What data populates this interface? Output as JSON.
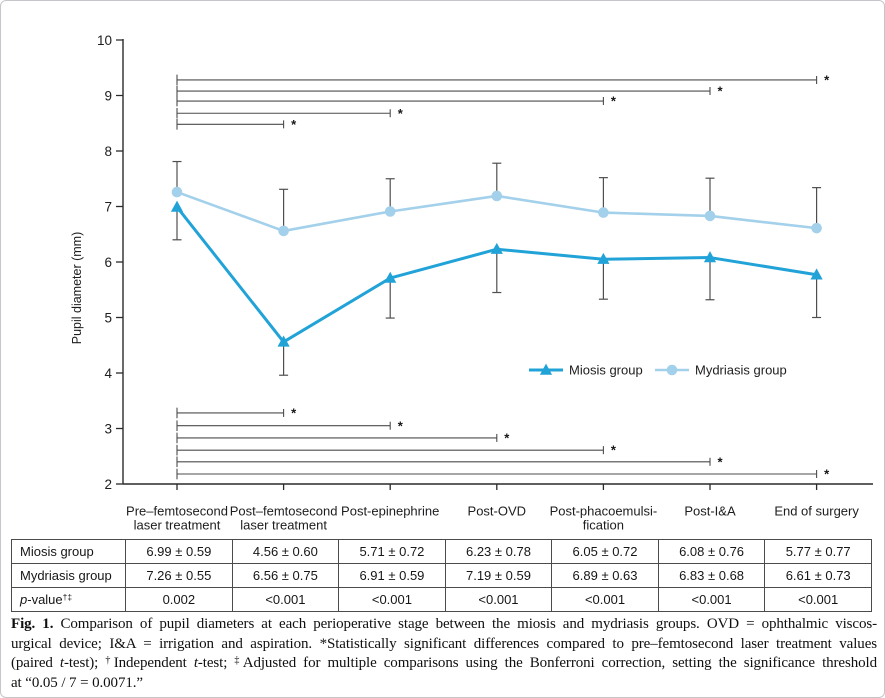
{
  "chart_data": {
    "type": "line",
    "title": "",
    "xlabel": "",
    "ylabel": "Pupil diameter (mm)",
    "ylim": [
      2,
      10
    ],
    "yticks": [
      2,
      3,
      4,
      5,
      6,
      7,
      8,
      9,
      10
    ],
    "grid": "off",
    "categories": [
      [
        "Pre–femtosecond",
        "laser treatment"
      ],
      [
        "Post–femtosecond",
        "laser treatment"
      ],
      [
        "Post-epinephrine"
      ],
      [
        "Post-OVD"
      ],
      [
        "Post-phacoemulsi-",
        "fication"
      ],
      [
        "Post-I&A"
      ],
      [
        "End of surgery"
      ]
    ],
    "series": [
      {
        "name": "Miosis group",
        "marker": "triangle",
        "color": "#21a3d8",
        "values": [
          6.99,
          4.56,
          5.71,
          6.23,
          6.05,
          6.08,
          5.77
        ],
        "sd": [
          0.59,
          0.6,
          0.72,
          0.78,
          0.72,
          0.76,
          0.77
        ],
        "error_direction": "down"
      },
      {
        "name": "Mydriasis group",
        "marker": "circle",
        "color": "#a3d0ea",
        "values": [
          7.26,
          6.56,
          6.91,
          7.19,
          6.89,
          6.83,
          6.61
        ],
        "sd": [
          0.55,
          0.75,
          0.59,
          0.59,
          0.63,
          0.68,
          0.73
        ],
        "error_direction": "up"
      }
    ],
    "legend": {
      "position": "center-right",
      "entries": [
        "Miosis group",
        "Mydriasis group"
      ]
    },
    "significance_marker": "*",
    "significance_top": [
      {
        "from_index": 0,
        "to_index": 6,
        "level": 9.28
      },
      {
        "from_index": 0,
        "to_index": 5,
        "level": 9.08
      },
      {
        "from_index": 0,
        "to_index": 4,
        "level": 8.9
      },
      {
        "from_index": 0,
        "to_index": 2,
        "level": 8.68
      },
      {
        "from_index": 0,
        "to_index": 1,
        "level": 8.48
      }
    ],
    "significance_bottom": [
      {
        "from_index": 0,
        "to_index": 1,
        "level": 3.28
      },
      {
        "from_index": 0,
        "to_index": 2,
        "level": 3.05
      },
      {
        "from_index": 0,
        "to_index": 3,
        "level": 2.83
      },
      {
        "from_index": 0,
        "to_index": 4,
        "level": 2.61
      },
      {
        "from_index": 0,
        "to_index": 5,
        "level": 2.4
      },
      {
        "from_index": 0,
        "to_index": 6,
        "level": 2.18
      }
    ]
  },
  "table": {
    "rows": [
      {
        "label": {
          "text": "Miosis group"
        },
        "values": [
          "6.99 ± 0.59",
          "4.56 ± 0.60",
          "5.71 ± 0.72",
          "6.23 ± 0.78",
          "6.05 ± 0.72",
          "6.08 ± 0.76",
          "5.77 ± 0.77"
        ]
      },
      {
        "label": {
          "text": "Mydriasis group"
        },
        "values": [
          "7.26 ± 0.55",
          "6.56 ± 0.75",
          "6.91 ± 0.59",
          "7.19 ± 0.59",
          "6.89 ± 0.63",
          "6.83 ± 0.68",
          "6.61 ± 0.73"
        ]
      },
      {
        "label": {
          "italic": "p",
          "text": "-value",
          "sup": "†‡"
        },
        "values": [
          "0.002",
          "<0.001",
          "<0.001",
          "<0.001",
          "<0.001",
          "<0.001",
          "<0.001"
        ]
      }
    ]
  },
  "caption": {
    "lines": [
      [
        {
          "t": "Fig. 1.",
          "b": 1
        },
        {
          "t": " Comparison of pupil diameters at each perioperative stage between the miosis and mydriasis groups. OVD = ophthalmic viscos-"
        }
      ],
      [
        {
          "t": "urgical device; I&A = irrigation and aspiration. *Statistically significant differences compared to pre–femtosecond laser treatment values"
        }
      ],
      [
        {
          "t": "(paired "
        },
        {
          "t": "t",
          "i": 1
        },
        {
          "t": "-test); "
        },
        {
          "t": "†",
          "s": 1
        },
        {
          "t": "Independent "
        },
        {
          "t": "t",
          "i": 1
        },
        {
          "t": "-test; "
        },
        {
          "t": "‡",
          "s": 1
        },
        {
          "t": "Adjusted for multiple comparisons using the Bonferroni correction, setting the significance threshold"
        }
      ],
      [
        {
          "t": "at “0.05 / 7 = 0.0071.”"
        }
      ]
    ]
  }
}
